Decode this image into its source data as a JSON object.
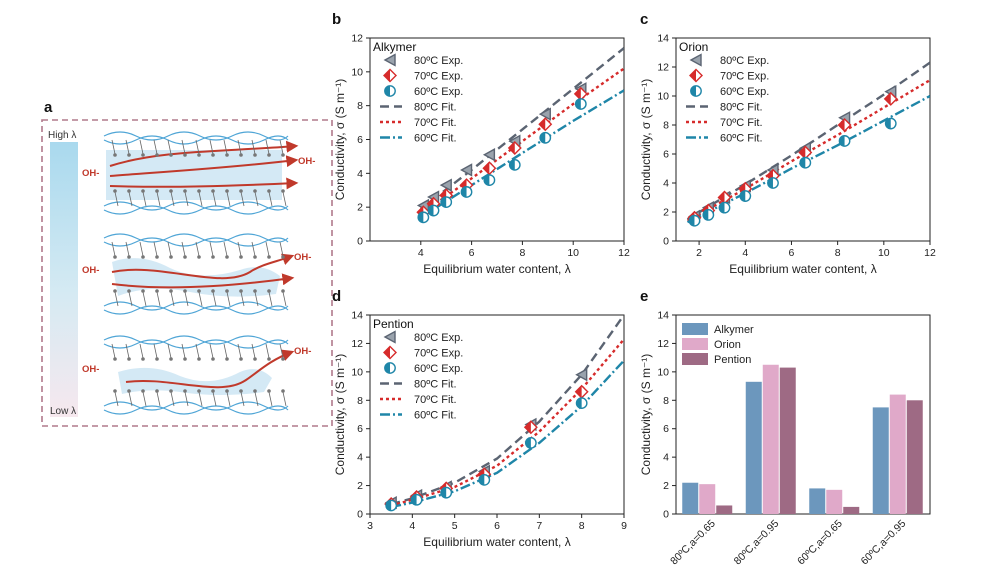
{
  "panel_a": {
    "label": "a",
    "high_label": "High λ",
    "low_label": "Low λ",
    "ion_label": "OH-"
  },
  "colors": {
    "80": "#5b6472",
    "70": "#d62b2b",
    "60": "#1f86a8",
    "alkymer_bar": "#6c97bd",
    "orion_bar": "#e0a9c9",
    "pention_bar": "#9e6a84",
    "schematic_border": "#b07a8c",
    "schematic_blue": "#4fa5d6",
    "arrow_red": "#c0392b"
  },
  "chart_data": [
    {
      "panel": "b",
      "type": "scatter",
      "title": "Alkymer",
      "xlabel": "Equilibrium water content, λ",
      "ylabel": "Conductivity, σ (S m⁻¹)",
      "xlim": [
        2,
        12
      ],
      "ylim": [
        0,
        12
      ],
      "xticks": [
        4,
        6,
        8,
        10,
        12
      ],
      "yticks": [
        0,
        2,
        4,
        6,
        8,
        10,
        12
      ],
      "legend": [
        "80ºC Exp.",
        "70ºC Exp.",
        "60ºC Exp.",
        "80ºC Fit.",
        "70ºC Fit.",
        "60ºC Fit."
      ],
      "series": [
        {
          "name": "80ºC Exp.",
          "temp": "80",
          "marker": "triangle",
          "x": [
            4.1,
            4.5,
            5.0,
            5.8,
            6.7,
            7.7,
            8.9,
            10.3
          ],
          "y": [
            2.1,
            2.6,
            3.3,
            4.2,
            5.1,
            5.9,
            7.5,
            9.0
          ]
        },
        {
          "name": "70ºC Exp.",
          "temp": "70",
          "marker": "diamond",
          "x": [
            4.1,
            4.5,
            5.0,
            5.8,
            6.7,
            7.7,
            8.9,
            10.3
          ],
          "y": [
            1.7,
            2.2,
            2.7,
            3.3,
            4.3,
            5.5,
            6.9,
            8.7
          ]
        },
        {
          "name": "60ºC Exp.",
          "temp": "60",
          "marker": "circle",
          "x": [
            4.1,
            4.5,
            5.0,
            5.8,
            6.7,
            7.7,
            8.9,
            10.3
          ],
          "y": [
            1.4,
            1.8,
            2.3,
            2.9,
            3.6,
            4.5,
            6.1,
            8.1
          ]
        },
        {
          "name": "80ºC Fit.",
          "temp": "80",
          "line": "dash",
          "x": [
            4,
            6,
            8,
            10,
            12
          ],
          "y": [
            1.9,
            4.2,
            6.6,
            9.0,
            11.4
          ]
        },
        {
          "name": "70ºC Fit.",
          "temp": "70",
          "line": "dot",
          "x": [
            4,
            6,
            8,
            10,
            12
          ],
          "y": [
            1.6,
            3.7,
            5.9,
            8.1,
            10.2
          ]
        },
        {
          "name": "60ºC Fit.",
          "temp": "60",
          "line": "dashdot",
          "x": [
            4,
            6,
            8,
            10,
            12
          ],
          "y": [
            1.4,
            3.3,
            5.2,
            7.1,
            8.9
          ]
        }
      ]
    },
    {
      "panel": "c",
      "type": "scatter",
      "title": "Orion",
      "xlabel": "Equilibrium water content, λ",
      "ylabel": "Conductivity, σ (S m⁻¹)",
      "xlim": [
        1,
        12
      ],
      "ylim": [
        0,
        14
      ],
      "xticks": [
        2,
        4,
        6,
        8,
        10,
        12
      ],
      "yticks": [
        0,
        2,
        4,
        6,
        8,
        10,
        12,
        14
      ],
      "legend": [
        "80ºC Exp.",
        "70ºC Exp.",
        "60ºC Exp.",
        "80ºC Fit.",
        "70ºC Fit.",
        "60ºC Fit."
      ],
      "series": [
        {
          "name": "80ºC Exp.",
          "temp": "80",
          "marker": "triangle",
          "x": [
            1.8,
            2.4,
            3.1,
            4.0,
            5.2,
            6.6,
            8.3,
            10.3
          ],
          "y": [
            1.7,
            2.3,
            3.0,
            3.8,
            4.9,
            6.4,
            8.5,
            10.3
          ]
        },
        {
          "name": "70ºC Exp.",
          "temp": "70",
          "marker": "diamond",
          "x": [
            1.8,
            2.4,
            3.1,
            4.0,
            5.2,
            6.6,
            8.3,
            10.3
          ],
          "y": [
            1.6,
            2.1,
            3.0,
            3.6,
            4.5,
            6.1,
            8.0,
            9.8
          ]
        },
        {
          "name": "60ºC Exp.",
          "temp": "60",
          "marker": "circle",
          "x": [
            1.8,
            2.4,
            3.1,
            4.0,
            5.2,
            6.6,
            8.3,
            10.3
          ],
          "y": [
            1.4,
            1.8,
            2.3,
            3.1,
            4.0,
            5.4,
            6.9,
            8.1
          ]
        },
        {
          "name": "80ºC Fit.",
          "temp": "80",
          "line": "dash",
          "x": [
            1.5,
            4,
            6,
            8,
            10,
            12
          ],
          "y": [
            1.5,
            3.9,
            5.9,
            8.0,
            10.1,
            12.3
          ]
        },
        {
          "name": "70ºC Fit.",
          "temp": "70",
          "line": "dot",
          "x": [
            1.5,
            4,
            6,
            8,
            10,
            12
          ],
          "y": [
            1.4,
            3.6,
            5.5,
            7.3,
            9.2,
            11.1
          ]
        },
        {
          "name": "60ºC Fit.",
          "temp": "60",
          "line": "dashdot",
          "x": [
            1.5,
            4,
            6,
            8,
            10,
            12
          ],
          "y": [
            1.3,
            3.3,
            5.0,
            6.6,
            8.3,
            10.0
          ]
        }
      ]
    },
    {
      "panel": "d",
      "type": "scatter",
      "title": "Pention",
      "xlabel": "Equilibrium water content, λ",
      "ylabel": "Conductivity, σ (S m⁻¹)",
      "xlim": [
        3,
        9
      ],
      "ylim": [
        0,
        14
      ],
      "xticks": [
        3,
        4,
        5,
        6,
        7,
        8,
        9
      ],
      "yticks": [
        0,
        2,
        4,
        6,
        8,
        10,
        12,
        14
      ],
      "legend": [
        "80ºC Exp.",
        "70ºC Exp.",
        "60ºC Exp.",
        "80ºC Fit.",
        "70ºC Fit.",
        "60ºC Fit."
      ],
      "series": [
        {
          "name": "80ºC Exp.",
          "temp": "80",
          "marker": "triangle",
          "x": [
            3.5,
            4.1,
            4.8,
            5.7,
            6.8,
            8.0
          ],
          "y": [
            0.8,
            1.3,
            1.9,
            3.0,
            6.3,
            9.8
          ]
        },
        {
          "name": "70ºC Exp.",
          "temp": "70",
          "marker": "diamond",
          "x": [
            3.5,
            4.1,
            4.8,
            5.7,
            6.8,
            8.0
          ],
          "y": [
            0.7,
            1.2,
            1.8,
            2.8,
            6.1,
            8.6
          ]
        },
        {
          "name": "60ºC Exp.",
          "temp": "60",
          "marker": "circle",
          "x": [
            3.5,
            4.1,
            4.8,
            5.7,
            6.8,
            8.0
          ],
          "y": [
            0.6,
            1.0,
            1.5,
            2.4,
            5.0,
            7.8
          ]
        },
        {
          "name": "80ºC Fit.",
          "temp": "80",
          "line": "dash",
          "x": [
            3.5,
            4,
            5,
            6,
            7,
            8,
            9
          ],
          "y": [
            0.7,
            1.1,
            2.2,
            3.9,
            6.5,
            9.8,
            14.0
          ]
        },
        {
          "name": "70ºC Fit.",
          "temp": "70",
          "line": "dot",
          "x": [
            3.5,
            4,
            5,
            6,
            7,
            8,
            9
          ],
          "y": [
            0.6,
            1.0,
            1.9,
            3.4,
            5.8,
            8.8,
            12.3
          ]
        },
        {
          "name": "60ºC Fit.",
          "temp": "60",
          "line": "dashdot",
          "x": [
            3.5,
            4,
            5,
            6,
            7,
            8,
            9
          ],
          "y": [
            0.5,
            0.8,
            1.6,
            2.9,
            5.0,
            7.6,
            10.8
          ]
        }
      ]
    },
    {
      "panel": "e",
      "type": "bar",
      "title": "",
      "xlabel": "",
      "ylabel": "Conductivity, σ (S m⁻¹)",
      "ylim": [
        0,
        14
      ],
      "yticks": [
        0,
        2,
        4,
        6,
        8,
        10,
        12,
        14
      ],
      "categories": [
        "80ºC,a=0.65",
        "80ºC,a=0.95",
        "60ºC,a=0.65",
        "60ºC,a=0.95"
      ],
      "legend": [
        "Alkymer",
        "Orion",
        "Pention"
      ],
      "series": [
        {
          "name": "Alkymer",
          "values": [
            2.2,
            9.3,
            1.8,
            7.5
          ]
        },
        {
          "name": "Orion",
          "values": [
            2.1,
            10.5,
            1.7,
            8.4
          ]
        },
        {
          "name": "Pention",
          "values": [
            0.6,
            10.3,
            0.5,
            8.0
          ]
        }
      ]
    }
  ]
}
